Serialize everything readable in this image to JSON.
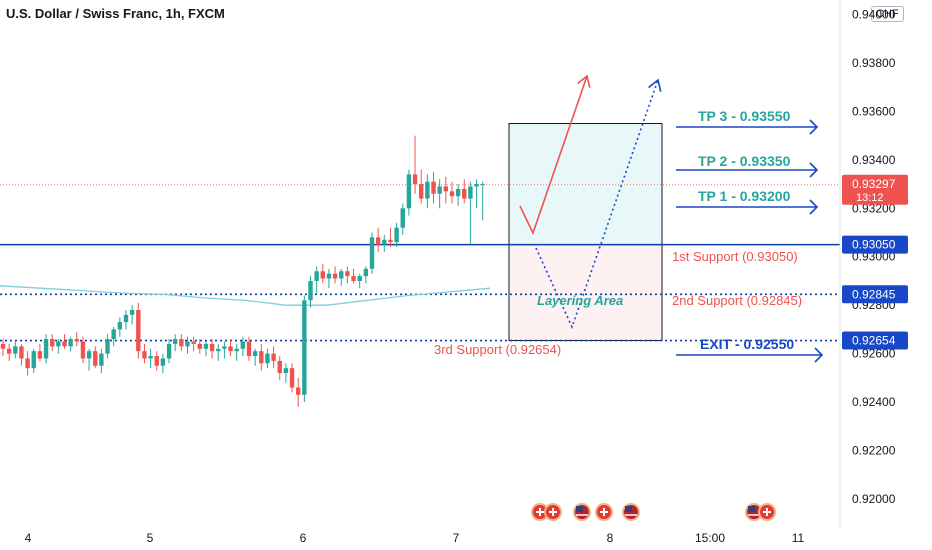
{
  "header": {
    "title": "U.S. Dollar / Swiss Franc, 1h, FXCM",
    "currency": "CHF"
  },
  "colors": {
    "up": "#26a69a",
    "down": "#ef5350",
    "level_line": "#0d3ea8",
    "tp_text": "#26a69a",
    "support_text": "#ef5350",
    "exit_text": "#1848c8",
    "arrow_blue": "#1848c8",
    "arrow_red": "#ef5350",
    "ma_line": "#7fd0d8",
    "price_badge": "#ef5350",
    "level_badge": "#1848c8",
    "tp_zone": "#e8f8f9",
    "support_zone": "#fdf1f2"
  },
  "chart_data": {
    "type": "candlestick",
    "title": "U.S. Dollar / Swiss Franc, 1h, FXCM",
    "ylim": [
      0.9188,
      0.9406
    ],
    "y_ticks": [
      "0.94000",
      "0.93800",
      "0.93600",
      "0.93400",
      "0.93200",
      "0.93000",
      "0.92800",
      "0.92600",
      "0.92400",
      "0.92200",
      "0.92000"
    ],
    "x_ticks": [
      "4",
      "5",
      "6",
      "7",
      "8",
      "15:00",
      "11"
    ],
    "current_price": {
      "value": "0.93297",
      "countdown": "13:12"
    },
    "levels": [
      {
        "value": 0.9305,
        "label": "0.93050",
        "style": "solid"
      },
      {
        "value": 0.92845,
        "label": "0.92845",
        "style": "dotted"
      },
      {
        "value": 0.92654,
        "label": "0.92654",
        "style": "dotted"
      }
    ],
    "annotations": {
      "tp3": "TP 3 - 0.93550",
      "tp2": "TP 2 - 0.93350",
      "tp1": "TP 1 - 0.93200",
      "support1": "1st Support (0.93050)",
      "support2": "2nd Support (0.92845)",
      "support3": "3rd Support (0.92654)",
      "exit": "EXIT - 0.92550",
      "layering": "Layering Area"
    },
    "zones": {
      "tp": {
        "top": 0.9355,
        "bottom": 0.9305
      },
      "layering": {
        "top": 0.9305,
        "bottom": 0.92654
      }
    },
    "moving_average": [
      0.9288,
      0.9287,
      0.9286,
      0.9285,
      0.92845,
      0.9283,
      0.9282,
      0.928,
      0.928,
      0.9282,
      0.9284,
      0.92855,
      0.9287
    ],
    "candles": [
      [
        0.9264,
        0.9266,
        0.9259,
        0.9262
      ],
      [
        0.9262,
        0.9264,
        0.9257,
        0.926
      ],
      [
        0.926,
        0.9265,
        0.9258,
        0.9263
      ],
      [
        0.9263,
        0.9264,
        0.9255,
        0.9258
      ],
      [
        0.9258,
        0.9261,
        0.9251,
        0.9254
      ],
      [
        0.9254,
        0.9262,
        0.9252,
        0.9261
      ],
      [
        0.9261,
        0.9264,
        0.9257,
        0.9258
      ],
      [
        0.9258,
        0.9268,
        0.9256,
        0.9266
      ],
      [
        0.9266,
        0.9268,
        0.9261,
        0.9263
      ],
      [
        0.9263,
        0.9266,
        0.926,
        0.9265
      ],
      [
        0.9265,
        0.9268,
        0.9262,
        0.9263
      ],
      [
        0.9263,
        0.9267,
        0.9261,
        0.9266
      ],
      [
        0.9266,
        0.9269,
        0.9263,
        0.9265
      ],
      [
        0.9265,
        0.9267,
        0.9256,
        0.9258
      ],
      [
        0.9258,
        0.9262,
        0.9253,
        0.9261
      ],
      [
        0.9261,
        0.9263,
        0.9254,
        0.9255
      ],
      [
        0.9255,
        0.9262,
        0.9252,
        0.926
      ],
      [
        0.926,
        0.9268,
        0.9258,
        0.9266
      ],
      [
        0.9266,
        0.9271,
        0.9263,
        0.927
      ],
      [
        0.927,
        0.9275,
        0.9267,
        0.9273
      ],
      [
        0.9273,
        0.9278,
        0.927,
        0.9276
      ],
      [
        0.9276,
        0.928,
        0.9272,
        0.9278
      ],
      [
        0.9278,
        0.9281,
        0.9258,
        0.9261
      ],
      [
        0.9261,
        0.9264,
        0.9256,
        0.9258
      ],
      [
        0.9258,
        0.9262,
        0.9254,
        0.9259
      ],
      [
        0.9259,
        0.9261,
        0.9253,
        0.9255
      ],
      [
        0.9255,
        0.926,
        0.9252,
        0.9258
      ],
      [
        0.9258,
        0.9266,
        0.9256,
        0.9264
      ],
      [
        0.9264,
        0.9268,
        0.9261,
        0.9266
      ],
      [
        0.9266,
        0.9268,
        0.9261,
        0.9263
      ],
      [
        0.9263,
        0.9267,
        0.926,
        0.9265
      ],
      [
        0.9265,
        0.9267,
        0.9261,
        0.9264
      ],
      [
        0.9264,
        0.9266,
        0.926,
        0.9262
      ],
      [
        0.9262,
        0.9265,
        0.9259,
        0.9264
      ],
      [
        0.9264,
        0.9266,
        0.9258,
        0.9261
      ],
      [
        0.9261,
        0.9264,
        0.9257,
        0.9262
      ],
      [
        0.9262,
        0.9265,
        0.9258,
        0.9263
      ],
      [
        0.9263,
        0.9266,
        0.9259,
        0.9261
      ],
      [
        0.9261,
        0.9264,
        0.9257,
        0.9262
      ],
      [
        0.9262,
        0.9267,
        0.9259,
        0.9265
      ],
      [
        0.9265,
        0.9267,
        0.9257,
        0.9259
      ],
      [
        0.9259,
        0.9262,
        0.9255,
        0.9261
      ],
      [
        0.9261,
        0.9264,
        0.9253,
        0.9256
      ],
      [
        0.9256,
        0.9262,
        0.9254,
        0.926
      ],
      [
        0.926,
        0.9263,
        0.9254,
        0.9257
      ],
      [
        0.9257,
        0.9259,
        0.9249,
        0.9252
      ],
      [
        0.9252,
        0.9256,
        0.9248,
        0.9254
      ],
      [
        0.9254,
        0.9256,
        0.9244,
        0.9246
      ],
      [
        0.9246,
        0.925,
        0.9238,
        0.9243
      ],
      [
        0.9243,
        0.9284,
        0.924,
        0.9282
      ],
      [
        0.9282,
        0.9292,
        0.9279,
        0.929
      ],
      [
        0.929,
        0.9296,
        0.9285,
        0.9294
      ],
      [
        0.9294,
        0.9297,
        0.9289,
        0.9291
      ],
      [
        0.9291,
        0.9295,
        0.9287,
        0.9293
      ],
      [
        0.9293,
        0.9296,
        0.9289,
        0.9291
      ],
      [
        0.9291,
        0.9295,
        0.9288,
        0.9294
      ],
      [
        0.9294,
        0.9296,
        0.9289,
        0.9292
      ],
      [
        0.9292,
        0.9295,
        0.9289,
        0.929
      ],
      [
        0.929,
        0.9293,
        0.9287,
        0.9292
      ],
      [
        0.9292,
        0.9296,
        0.9289,
        0.9295
      ],
      [
        0.9295,
        0.931,
        0.9293,
        0.9308
      ],
      [
        0.9308,
        0.9312,
        0.9302,
        0.9305
      ],
      [
        0.9305,
        0.9309,
        0.9302,
        0.9307
      ],
      [
        0.9307,
        0.9312,
        0.9304,
        0.9306
      ],
      [
        0.9306,
        0.9314,
        0.9304,
        0.9312
      ],
      [
        0.9312,
        0.9322,
        0.9309,
        0.932
      ],
      [
        0.932,
        0.9336,
        0.9317,
        0.9334
      ],
      [
        0.9334,
        0.935,
        0.9326,
        0.933
      ],
      [
        0.933,
        0.9336,
        0.9322,
        0.9324
      ],
      [
        0.9324,
        0.9334,
        0.932,
        0.9331
      ],
      [
        0.9331,
        0.9335,
        0.9322,
        0.9326
      ],
      [
        0.9326,
        0.9332,
        0.932,
        0.9329
      ],
      [
        0.9329,
        0.9333,
        0.9322,
        0.9327
      ],
      [
        0.9327,
        0.9331,
        0.9322,
        0.9325
      ],
      [
        0.9325,
        0.933,
        0.9321,
        0.9328
      ],
      [
        0.9328,
        0.9332,
        0.9322,
        0.9324
      ],
      [
        0.9324,
        0.9331,
        0.9305,
        0.9329
      ],
      [
        0.9329,
        0.9332,
        0.932,
        0.933
      ],
      [
        0.933,
        0.9331,
        0.9315,
        0.933
      ]
    ]
  },
  "events": {
    "row1": [
      "economic-event-swiss",
      "economic-event-swiss",
      "economic-event-us",
      "economic-event-swiss",
      "economic-event-us"
    ],
    "row2": [
      "economic-event-us",
      "economic-event-swiss"
    ]
  }
}
